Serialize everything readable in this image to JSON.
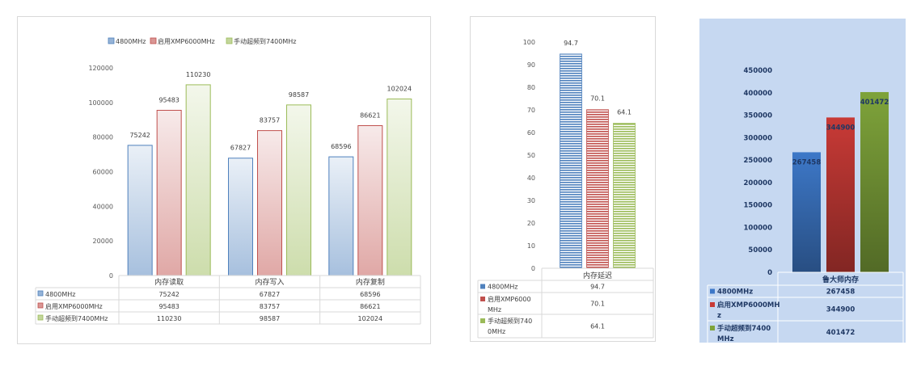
{
  "chart_data": [
    {
      "type": "bar",
      "categories": [
        "内存读取",
        "内存写入",
        "内存复制"
      ],
      "series": [
        {
          "name": "4800MHz",
          "values": [
            75242,
            67827,
            68596
          ]
        },
        {
          "name": "启用XMP6000MHz",
          "values": [
            95483,
            83757,
            86621
          ]
        },
        {
          "name": "手动超频到7400MHz",
          "values": [
            110230,
            98587,
            102024
          ]
        }
      ],
      "ylim": [
        0,
        120000
      ],
      "yticks": [
        "120000",
        "100000",
        "80000",
        "60000",
        "40000",
        "20000",
        "0"
      ],
      "legend": "top",
      "grid": false,
      "data_table": true,
      "colors": [
        "#4f81bd",
        "#c0504d",
        "#9bbb59"
      ]
    },
    {
      "type": "bar",
      "categories": [
        "内存延迟"
      ],
      "series": [
        {
          "name": "4800MHz",
          "values": [
            94.7
          ]
        },
        {
          "name": "启用XMP6000MHz",
          "values": [
            70.1
          ]
        },
        {
          "name": "手动超频到7400MHz",
          "values": [
            64.1
          ]
        }
      ],
      "table_labels": [
        "4800MHz",
        "启用XMP6000\nMHz",
        "手动超频到740\n0MHz"
      ],
      "ylim": [
        0,
        100
      ],
      "yticks": [
        "100",
        "90",
        "80",
        "70",
        "60",
        "50",
        "40",
        "30",
        "20",
        "10",
        "0"
      ],
      "grid": false,
      "data_table": true,
      "colors": [
        "#4f81bd",
        "#c0504d",
        "#9bbb59"
      ]
    },
    {
      "type": "bar",
      "categories": [
        "鲁大师内存"
      ],
      "series": [
        {
          "name": "4800MHz",
          "values": [
            267458
          ]
        },
        {
          "name": "启用XMP6000MHz",
          "values": [
            344900
          ]
        },
        {
          "name": "手动超频到7400MHz",
          "values": [
            401472
          ]
        }
      ],
      "table_labels": [
        "4800MHz",
        "启用XMP6000MH\nz",
        "手动超频到7400\nMHz"
      ],
      "ylim": [
        0,
        450000
      ],
      "yticks": [
        "450000",
        "400000",
        "350000",
        "300000",
        "250000",
        "200000",
        "150000",
        "100000",
        "50000",
        "0"
      ],
      "grid": false,
      "data_table": true,
      "background": "#c6d8f1",
      "colors": [
        "#3d78c8",
        "#c83a36",
        "#7ea33a"
      ]
    }
  ]
}
